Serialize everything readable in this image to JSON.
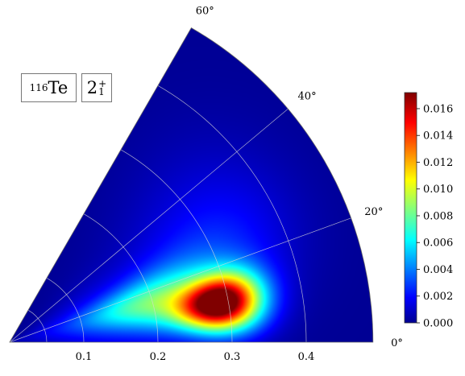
{
  "chart_data": {
    "type": "heatmap",
    "coordinate_system": "polar-sector",
    "annotations": {
      "nucleus_mass": "116",
      "nucleus_symbol": "Te",
      "state": "2",
      "state_superscript": "+",
      "state_subscript": "1"
    },
    "radial_axis": {
      "range": [
        0,
        0.49
      ],
      "ticks": [
        0.1,
        0.2,
        0.3,
        0.4
      ],
      "tick_labels": [
        "0.1",
        "0.2",
        "0.3",
        "0.4"
      ]
    },
    "angular_axis": {
      "range_deg": [
        0,
        60
      ],
      "ticks_deg": [
        0,
        20,
        40,
        60
      ],
      "tick_labels": [
        "0°",
        "20°",
        "40°",
        "60°"
      ]
    },
    "grid": true,
    "colormap": "jet",
    "colorbar": {
      "range": [
        0,
        0.0172
      ],
      "ticks": [
        0.0,
        0.002,
        0.004,
        0.006,
        0.008,
        0.01,
        0.012,
        0.014,
        0.016
      ],
      "tick_labels": [
        "0.000",
        "0.002",
        "0.004",
        "0.006",
        "0.008",
        "0.010",
        "0.012",
        "0.014",
        "0.016"
      ],
      "placement": "right"
    },
    "density_components": [
      {
        "beta": 0.29,
        "gamma_deg": 10.5,
        "amplitude": 0.0172,
        "sigma_r": 0.038,
        "sigma_gamma_deg": 5.0
      },
      {
        "beta": 0.22,
        "gamma_deg": 14.5,
        "amplitude": 0.0052,
        "sigma_r": 0.065,
        "sigma_gamma_deg": 9.0
      },
      {
        "beta": 0.18,
        "gamma_deg": 16.5,
        "amplitude": 0.0028,
        "sigma_r": 0.055,
        "sigma_gamma_deg": 6.0
      },
      {
        "beta": 0.1,
        "gamma_deg": 14.0,
        "amplitude": 0.0018,
        "sigma_r": 0.06,
        "sigma_gamma_deg": 15.0
      },
      {
        "beta": 0.29,
        "gamma_deg": 38.0,
        "amplitude": 0.0008,
        "sigma_r": 0.09,
        "sigma_gamma_deg": 12.0
      },
      {
        "beta": 0.32,
        "gamma_deg": 25.0,
        "amplitude": 0.0015,
        "sigma_r": 0.07,
        "sigma_gamma_deg": 10.0
      }
    ]
  }
}
